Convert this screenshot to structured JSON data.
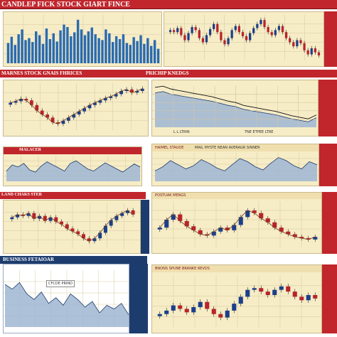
{
  "header": {
    "title": "CANDLEP FICK STOCK GIART FINCE"
  },
  "sections": {
    "row2_left_title": "MARNES STOCK GNAIS FHRICES",
    "row2_right_title": "PRICHIP KNEDGS",
    "row3_left_title": "MALACER",
    "row3_right_title": "HAIMEL STAUDE",
    "row4_left_title": "LAND CHAKS STER",
    "row4_right_title": "POSTUAK MENGS",
    "row5_left_title": "BUSINESS FETAIOAR",
    "row5_right_title": "BNONS SPUNE BRANKE REVDS",
    "row2_right_axis": "L L  LTRIN",
    "row2_right_ticks": "TNE  ETPEE  LTRE",
    "row3_right_sub": "MAIL MYSTE  NEAN  AVERAGR SINNER",
    "row5_left_box": "CFCDE PRIND"
  },
  "colors": {
    "red": "#c0262c",
    "navy": "#1d3c6e",
    "blue": "#2a6bb0",
    "cream": "#f6ecc6",
    "grid": "#d7c9a0",
    "candle_up": "#1b3f8a",
    "candle_down": "#b8232a",
    "area": "#9fb6d2"
  },
  "chart_data": [
    {
      "type": "bar",
      "values": [
        42,
        55,
        38,
        60,
        70,
        48,
        52,
        44,
        66,
        58,
        40,
        72,
        50,
        62,
        45,
        68,
        80,
        75,
        56,
        64,
        90,
        70,
        58,
        66,
        74,
        60,
        52,
        48,
        70,
        62,
        44,
        56,
        50,
        60,
        42,
        38,
        54,
        46,
        58,
        40,
        52,
        36,
        48,
        30
      ],
      "ylim": [
        0,
        100
      ]
    },
    {
      "type": "line",
      "values": [
        60,
        58,
        62,
        55,
        50,
        57,
        63,
        60,
        52,
        48,
        55,
        61,
        66,
        58,
        50,
        46,
        52,
        60,
        64,
        58,
        54,
        50,
        57,
        62,
        66,
        70,
        63,
        58,
        55,
        60,
        64,
        58,
        52,
        48,
        44,
        50,
        47,
        40,
        36,
        42,
        38,
        35
      ],
      "ylim": [
        30,
        75
      ]
    },
    {
      "type": "line",
      "values": [
        55,
        57,
        60,
        58,
        52,
        45,
        40,
        36,
        30,
        28,
        32,
        36,
        40,
        44,
        48,
        52,
        55,
        58,
        61,
        63,
        66,
        70,
        72,
        68,
        70,
        73
      ],
      "ylim": [
        20,
        80
      ]
    },
    {
      "type": "line",
      "values": [
        70,
        72,
        68,
        66,
        64,
        62,
        60,
        58,
        55,
        52,
        50,
        46,
        44,
        42,
        40,
        38,
        35,
        32,
        30,
        28,
        34
      ],
      "ylim": [
        20,
        80
      ]
    },
    {
      "type": "area",
      "values": [
        40,
        52,
        48,
        55,
        42,
        38,
        50,
        58,
        52,
        46,
        40,
        55,
        60,
        52,
        44,
        40,
        48,
        56,
        50,
        44,
        38,
        46,
        54,
        48
      ],
      "ylim": [
        20,
        70
      ]
    },
    {
      "type": "area",
      "values": [
        40,
        48,
        60,
        52,
        44,
        50,
        62,
        55,
        46,
        40,
        52,
        64,
        58,
        48,
        42,
        55,
        66,
        60,
        50,
        44,
        58,
        52
      ],
      "ylim": [
        20,
        75
      ]
    },
    {
      "type": "line",
      "values": [
        60,
        64,
        62,
        66,
        58,
        62,
        55,
        60,
        54,
        50,
        44,
        40,
        36,
        30,
        26,
        30,
        38,
        48,
        56,
        62,
        66,
        70,
        64
      ],
      "ylim": [
        15,
        80
      ]
    },
    {
      "type": "line",
      "values": [
        40,
        52,
        60,
        50,
        42,
        36,
        30,
        28,
        34,
        40,
        36,
        44,
        56,
        66,
        62,
        54,
        48,
        40,
        34,
        30,
        26,
        24,
        22,
        26
      ],
      "ylim": [
        10,
        80
      ]
    },
    {
      "type": "area",
      "values": [
        60,
        55,
        62,
        50,
        44,
        52,
        40,
        46,
        38,
        50,
        44,
        36,
        42,
        30,
        38,
        34,
        40,
        28
      ],
      "ylim": [
        15,
        75
      ]
    },
    {
      "type": "line",
      "values": [
        30,
        34,
        40,
        36,
        32,
        38,
        44,
        36,
        30,
        26,
        34,
        42,
        50,
        58,
        60,
        56,
        52,
        58,
        62,
        56,
        50,
        46,
        52,
        48
      ],
      "ylim": [
        15,
        75
      ]
    }
  ]
}
